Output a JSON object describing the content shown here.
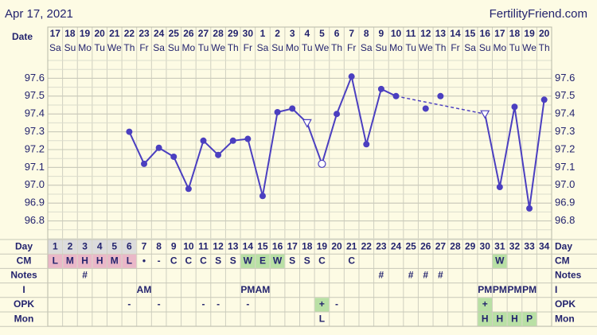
{
  "header": {
    "date": "Apr 17, 2021",
    "site": "FertilityFriend.com"
  },
  "chart_data": {
    "type": "line",
    "date_label": "Date",
    "categories": [
      "17",
      "18",
      "19",
      "20",
      "21",
      "22",
      "23",
      "24",
      "25",
      "26",
      "27",
      "28",
      "29",
      "30",
      "1",
      "2",
      "3",
      "4",
      "5",
      "6",
      "7",
      "8",
      "9",
      "10",
      "11",
      "12",
      "13",
      "14",
      "15",
      "16",
      "17",
      "18",
      "19",
      "20"
    ],
    "weekdays": [
      "Sa",
      "Su",
      "Mo",
      "Tu",
      "We",
      "Th",
      "Fr",
      "Sa",
      "Su",
      "Mo",
      "Tu",
      "We",
      "Th",
      "Fr",
      "Sa",
      "Su",
      "Mo",
      "Tu",
      "We",
      "Th",
      "Fr",
      "Sa",
      "Su",
      "Mo",
      "Tu",
      "We",
      "Th",
      "Fr",
      "Sa",
      "Su",
      "Mo",
      "Tu",
      "We",
      "Th"
    ],
    "ylim": [
      96.7,
      97.7
    ],
    "yticks": [
      96.8,
      96.9,
      {
        "value": 97,
        "label": "97.0"
      },
      97.1,
      97.2,
      97.3,
      97.4,
      97.5,
      97.6
    ],
    "color": "#4b3fc0",
    "grid": true,
    "values": [
      null,
      null,
      null,
      null,
      null,
      97.3,
      97.12,
      97.21,
      97.16,
      96.98,
      97.25,
      97.17,
      97.25,
      97.26,
      96.94,
      97.41,
      97.43,
      97.35,
      97.12,
      97.4,
      97.61,
      97.23,
      97.54,
      97.5,
      null,
      null,
      null,
      null,
      null,
      97.4,
      96.99,
      97.44,
      96.87,
      97.48
    ],
    "markers": [
      null,
      null,
      null,
      null,
      null,
      "dot",
      "dot",
      "dot",
      "dot",
      "dot",
      "dot",
      "dot",
      "dot",
      "dot",
      "dot",
      "dot",
      "dot",
      "triangle",
      "circle",
      "dot",
      "dot",
      "dot",
      "dot",
      "dot",
      null,
      null,
      null,
      null,
      null,
      "triangle",
      "dot",
      "dot",
      "dot",
      "dot"
    ],
    "excluded_values": [
      null,
      null,
      null,
      null,
      null,
      null,
      null,
      null,
      null,
      null,
      null,
      null,
      null,
      null,
      null,
      null,
      null,
      null,
      null,
      null,
      null,
      null,
      null,
      null,
      null,
      97.43,
      97.5,
      null,
      null,
      null,
      null,
      null,
      null,
      null
    ]
  },
  "table": {
    "day_label": "Day",
    "days": [
      1,
      2,
      3,
      4,
      5,
      6,
      7,
      8,
      9,
      10,
      11,
      12,
      13,
      14,
      15,
      16,
      17,
      18,
      19,
      20,
      21,
      22,
      23,
      24,
      25,
      26,
      27,
      28,
      29,
      30,
      31,
      32,
      33,
      34
    ],
    "day_colors": [
      "#dcdcdc",
      "#dcdcdc",
      "#dcdcdc",
      "#dcdcdc",
      "#dcdcdc",
      "#dcdcdc",
      null,
      null,
      null,
      null,
      null,
      null,
      null,
      null,
      null,
      null,
      null,
      null,
      null,
      null,
      null,
      null,
      null,
      null,
      null,
      null,
      null,
      null,
      null,
      null,
      null,
      null,
      null,
      null
    ],
    "rows": [
      {
        "label": "CM",
        "cells": [
          "L",
          "M",
          "H",
          "H",
          "M",
          "L",
          "•",
          "-",
          "C",
          "C",
          "C",
          "S",
          "S",
          "W",
          "E",
          "W",
          "S",
          "S",
          "C",
          null,
          "C",
          null,
          null,
          null,
          null,
          null,
          null,
          null,
          null,
          null,
          "W",
          null,
          null,
          null
        ],
        "colors": [
          "#eab8c8",
          "#eab8c8",
          "#eab8c8",
          "#eab8c8",
          "#eab8c8",
          "#eab8c8",
          null,
          null,
          null,
          null,
          null,
          null,
          null,
          "#b9e0a5",
          "#b9e0a5",
          "#b9e0a5",
          null,
          null,
          null,
          null,
          null,
          null,
          null,
          null,
          null,
          null,
          null,
          null,
          null,
          null,
          "#b9e0a5",
          null,
          null,
          null
        ]
      },
      {
        "label": "Notes",
        "cells": [
          null,
          null,
          "#",
          null,
          null,
          null,
          null,
          null,
          null,
          null,
          null,
          null,
          null,
          null,
          null,
          null,
          null,
          null,
          null,
          null,
          null,
          null,
          "#",
          null,
          "#",
          "#",
          "#",
          null,
          null,
          null,
          null,
          null,
          null,
          null
        ]
      },
      {
        "label": "I",
        "cells": [
          null,
          null,
          null,
          null,
          null,
          null,
          "AM",
          null,
          null,
          null,
          null,
          null,
          null,
          "PM",
          "AM",
          null,
          null,
          null,
          null,
          null,
          null,
          null,
          null,
          null,
          null,
          null,
          null,
          null,
          null,
          "PM",
          "PM",
          "PM",
          "PM",
          null
        ]
      },
      {
        "label": "OPK",
        "cells": [
          null,
          null,
          null,
          null,
          null,
          "-",
          null,
          "-",
          null,
          null,
          "-",
          "-",
          null,
          "-",
          null,
          null,
          null,
          null,
          "+",
          "-",
          null,
          null,
          null,
          null,
          null,
          null,
          null,
          null,
          null,
          "+",
          null,
          null,
          null,
          null
        ],
        "colors": [
          null,
          null,
          null,
          null,
          null,
          null,
          null,
          null,
          null,
          null,
          null,
          null,
          null,
          null,
          null,
          null,
          null,
          null,
          "#b9e0a5",
          null,
          null,
          null,
          null,
          null,
          null,
          null,
          null,
          null,
          null,
          "#b9e0a5",
          null,
          null,
          null,
          null
        ]
      },
      {
        "label": "Mon",
        "cells": [
          null,
          null,
          null,
          null,
          null,
          null,
          null,
          null,
          null,
          null,
          null,
          null,
          null,
          null,
          null,
          null,
          null,
          null,
          "L",
          null,
          null,
          null,
          null,
          null,
          null,
          null,
          null,
          null,
          null,
          "H",
          "H",
          "H",
          "P",
          null
        ],
        "colors": [
          null,
          null,
          null,
          null,
          null,
          null,
          null,
          null,
          null,
          null,
          null,
          null,
          null,
          null,
          null,
          null,
          null,
          null,
          null,
          null,
          null,
          null,
          null,
          null,
          null,
          null,
          null,
          null,
          null,
          "#b9e0a5",
          "#b9e0a5",
          "#b9e0a5",
          "#b9e0a5",
          null
        ]
      }
    ]
  }
}
